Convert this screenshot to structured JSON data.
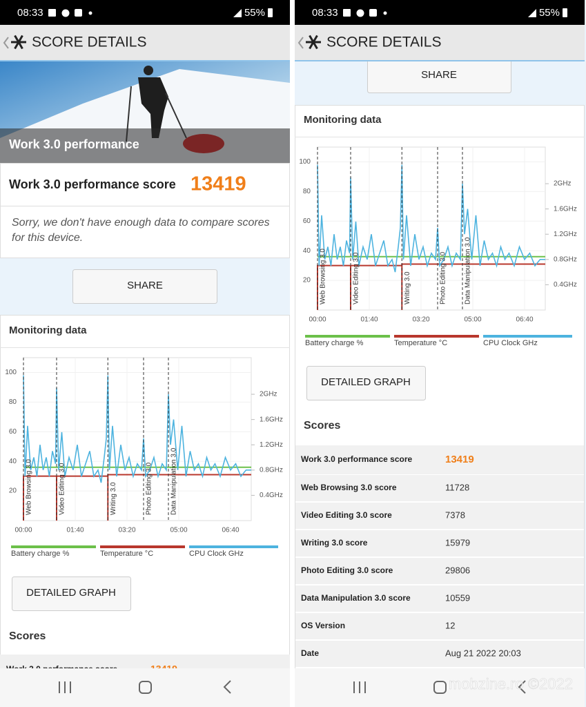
{
  "status_bar": {
    "time": "08:33",
    "battery": "55%"
  },
  "header": {
    "title": "SCORE DETAILS"
  },
  "banner": {
    "title": "Work 3.0 performance"
  },
  "score": {
    "label": "Work 3.0 performance score",
    "value": 13419
  },
  "note": "Sorry, we don't have enough data to compare scores for this device.",
  "buttons": {
    "share": "SHARE",
    "detailed_graph": "DETAILED GRAPH"
  },
  "monitoring": {
    "title": "Monitoring data"
  },
  "chart_data": {
    "type": "line",
    "xlim": [
      0,
      440
    ],
    "xticks": [
      {
        "value": 0,
        "label": "00:00"
      },
      {
        "value": 100,
        "label": "01:40"
      },
      {
        "value": 200,
        "label": "03:20"
      },
      {
        "value": 300,
        "label": "05:00"
      },
      {
        "value": 400,
        "label": "06:40"
      }
    ],
    "ylim": [
      0,
      110
    ],
    "yticks": [
      20,
      40,
      60,
      80,
      100
    ],
    "y2lim": [
      0,
      2.58
    ],
    "y2ticks": [
      {
        "value": 0.4,
        "label": "0.4GHz"
      },
      {
        "value": 0.8,
        "label": "0.8GHz"
      },
      {
        "value": 1.2,
        "label": "1.2GHz"
      },
      {
        "value": 1.6,
        "label": "1.6GHz"
      },
      {
        "value": 2,
        "label": "2GHz"
      }
    ],
    "grid": true,
    "markers": [
      {
        "label": "Web Browsing 3.0",
        "x": 0
      },
      {
        "label": "Video Editing 3.0",
        "x": 64
      },
      {
        "label": "Writing 3.0",
        "x": 163
      },
      {
        "label": "Photo Editing 3.0",
        "x": 232
      },
      {
        "label": "Data Manipulation 3.0",
        "x": 280
      }
    ],
    "series": [
      {
        "name": "Battery charge %",
        "color": "#6cc04a",
        "x": [
          0,
          440
        ],
        "values": [
          36,
          36
        ]
      },
      {
        "name": "Temperature °C",
        "color": "#b8372d",
        "x": [
          0,
          0,
          64,
          64,
          64,
          163,
          163,
          163,
          440
        ],
        "values": [
          0,
          30,
          30,
          0,
          30,
          30,
          0,
          31,
          31
        ]
      },
      {
        "name": "CPU Clock GHz",
        "color": "#4db3df",
        "axis": "y2",
        "x": [
          0,
          3,
          8,
          14,
          20,
          26,
          32,
          38,
          44,
          50,
          56,
          62,
          64,
          68,
          74,
          80,
          88,
          96,
          104,
          112,
          120,
          128,
          136,
          144,
          150,
          156,
          160,
          163,
          166,
          172,
          180,
          188,
          196,
          204,
          212,
          220,
          228,
          232,
          236,
          244,
          252,
          260,
          268,
          276,
          280,
          284,
          290,
          298,
          306,
          314,
          322,
          330,
          338,
          346,
          354,
          362,
          370,
          380,
          390,
          400,
          410,
          420,
          430,
          440
        ],
        "values": [
          2.3,
          0.7,
          1.5,
          0.8,
          1.0,
          0.7,
          1.2,
          0.8,
          1.0,
          0.7,
          1.1,
          0.9,
          2.1,
          0.8,
          1.4,
          0.7,
          1.0,
          0.8,
          1.2,
          0.7,
          0.9,
          1.1,
          0.7,
          0.8,
          0.6,
          1.0,
          1.3,
          2.3,
          0.8,
          1.5,
          0.7,
          1.2,
          0.8,
          1.0,
          0.7,
          0.9,
          0.8,
          1.3,
          0.7,
          0.8,
          1.0,
          0.7,
          0.9,
          0.8,
          2.0,
          1.2,
          1.6,
          0.8,
          1.5,
          0.7,
          1.1,
          0.8,
          0.9,
          0.7,
          1.0,
          0.8,
          0.9,
          0.7,
          1.0,
          0.8,
          0.9,
          0.7,
          0.8,
          0.8
        ]
      }
    ]
  },
  "scores": {
    "title": "Scores",
    "rows": [
      [
        "Work 3.0 performance score",
        13419
      ],
      [
        "Web Browsing 3.0 score",
        11728
      ],
      [
        "Video Editing 3.0 score",
        7378
      ],
      [
        "Writing 3.0 score",
        15979
      ],
      [
        "Photo Editing 3.0 score",
        29806
      ],
      [
        "Data Manipulation 3.0 score",
        10559
      ],
      [
        "OS Version",
        12
      ],
      [
        "Date",
        "Aug 21 2022 20:03"
      ]
    ]
  },
  "watermark": "mobzine.ro ©2022"
}
